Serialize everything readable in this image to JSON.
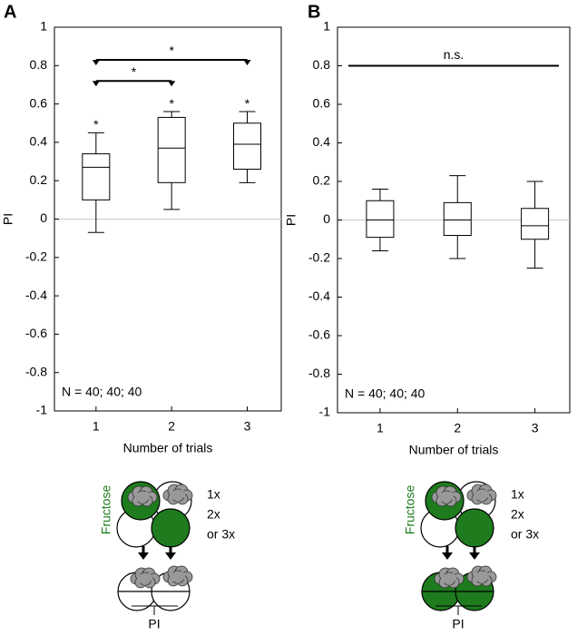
{
  "chart_data": [
    {
      "type": "box",
      "panel": "A",
      "ylabel": "PI",
      "xlabel": "Number of trials",
      "categories": [
        "1",
        "2",
        "3"
      ],
      "boxes": [
        {
          "whislo": -0.07,
          "q1": 0.1,
          "med": 0.27,
          "q3": 0.34,
          "whishi": 0.45
        },
        {
          "whislo": 0.05,
          "q1": 0.19,
          "med": 0.37,
          "q3": 0.53,
          "whishi": 0.56
        },
        {
          "whislo": 0.19,
          "q1": 0.26,
          "med": 0.39,
          "q3": 0.5,
          "whishi": 0.56
        }
      ],
      "box_labels": [
        "*",
        "*",
        "*"
      ],
      "significance": [
        {
          "between": [
            "1",
            "2"
          ],
          "y": 0.72,
          "label": "*"
        },
        {
          "between": [
            "1",
            "3"
          ],
          "y": 0.83,
          "label": "*"
        }
      ],
      "annotation": "N = 40; 40; 40",
      "ylim": [
        -1,
        1
      ],
      "yticks": [
        -1,
        -0.8,
        -0.6,
        -0.4,
        -0.2,
        0,
        0.2,
        0.4,
        0.6,
        0.8,
        1
      ],
      "zero_line": true,
      "diagram": {
        "label": "Fructose",
        "repeats": [
          "1x",
          "2x",
          "or 3x"
        ],
        "readout": "PI"
      }
    },
    {
      "type": "box",
      "panel": "B",
      "ylabel": "PI",
      "xlabel": "Number of trials",
      "categories": [
        "1",
        "2",
        "3"
      ],
      "boxes": [
        {
          "whislo": -0.16,
          "q1": -0.09,
          "med": 0.0,
          "q3": 0.1,
          "whishi": 0.16
        },
        {
          "whislo": -0.2,
          "q1": -0.08,
          "med": 0.0,
          "q3": 0.09,
          "whishi": 0.23
        },
        {
          "whislo": -0.25,
          "q1": -0.1,
          "med": -0.03,
          "q3": 0.06,
          "whishi": 0.2
        }
      ],
      "significance": [
        {
          "between": [
            "1",
            "3"
          ],
          "y": 0.8,
          "label": "n.s."
        }
      ],
      "annotation": "N = 40; 40; 40",
      "ylim": [
        -1,
        1
      ],
      "yticks": [
        -1,
        -0.8,
        -0.6,
        -0.4,
        -0.2,
        0,
        0.2,
        0.4,
        0.6,
        0.8,
        1
      ],
      "zero_line": true,
      "diagram": {
        "label": "Fructose",
        "repeats": [
          "1x",
          "2x",
          "or 3x"
        ],
        "readout": "PI"
      }
    }
  ]
}
